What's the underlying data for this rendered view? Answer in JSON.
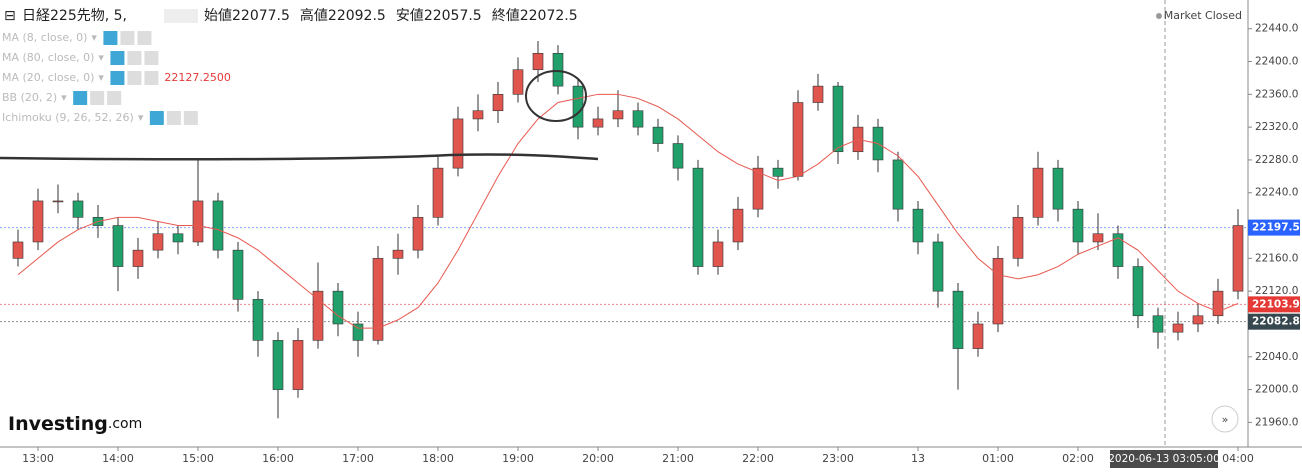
{
  "header": {
    "title": "日経225先物, 5,",
    "fields": [
      {
        "label": "始値",
        "value": "22077.5"
      },
      {
        "label": "高値",
        "value": "22092.5"
      },
      {
        "label": "安値",
        "value": "22057.5"
      },
      {
        "label": "終値",
        "value": "22072.5"
      }
    ]
  },
  "indicators": [
    {
      "label": "MA (8, close, 0)"
    },
    {
      "label": "MA (80, close, 0)"
    },
    {
      "label": "MA (20, close, 0)",
      "value": "22127.2500"
    },
    {
      "label": "BB (20, 2)"
    },
    {
      "label": "Ichimoku (9, 26, 52, 26)"
    }
  ],
  "status": "Market Closed",
  "logo": {
    "name": "Investing",
    "suffix": ".com"
  },
  "chart_data": {
    "type": "candlestick",
    "up_color": "#e0564f",
    "down_color": "#22a06b",
    "open": [
      22160,
      22180,
      22230,
      22230,
      22210,
      22200,
      22150,
      22170,
      22190,
      22180,
      22230,
      22170,
      22110,
      22060,
      22000,
      22060,
      22120,
      22080,
      22060,
      22160,
      22170,
      22210,
      22270,
      22330,
      22340,
      22360,
      22390,
      22410,
      22370,
      22320,
      22330,
      22340,
      22320,
      22300,
      22270,
      22150,
      22180,
      22220,
      22270,
      22260,
      22350,
      22370,
      22290,
      22320,
      22280,
      22220,
      22180,
      22120,
      22050,
      22080,
      22160,
      22210,
      22270,
      22220,
      22180,
      22190,
      22150,
      22090,
      22070,
      22080,
      22090,
      22120
    ],
    "high": [
      22195,
      22245,
      22250,
      22240,
      22225,
      22210,
      22185,
      22205,
      22200,
      22280,
      22240,
      22180,
      22120,
      22070,
      22075,
      22155,
      22130,
      22095,
      22175,
      22190,
      22225,
      22285,
      22345,
      22360,
      22375,
      22405,
      22425,
      22420,
      22380,
      22345,
      22365,
      22350,
      22330,
      22310,
      22280,
      22195,
      22235,
      22285,
      22280,
      22365,
      22385,
      22375,
      22335,
      22330,
      22290,
      22230,
      22190,
      22130,
      22095,
      22175,
      22225,
      22290,
      22280,
      22230,
      22215,
      22200,
      22160,
      22100,
      22095,
      22105,
      22135,
      22220
    ],
    "low": [
      22150,
      22170,
      22215,
      22195,
      22185,
      22120,
      22135,
      22160,
      22165,
      22175,
      22160,
      22095,
      22040,
      21965,
      21990,
      22050,
      22065,
      22040,
      22055,
      22140,
      22160,
      22200,
      22260,
      22315,
      22325,
      22350,
      22375,
      22360,
      22305,
      22310,
      22320,
      22310,
      22290,
      22255,
      22140,
      22140,
      22170,
      22210,
      22245,
      22255,
      22340,
      22275,
      22280,
      22265,
      22205,
      22165,
      22100,
      22000,
      22040,
      22070,
      22150,
      22200,
      22205,
      22165,
      22170,
      22135,
      22075,
      22050,
      22060,
      22070,
      22080,
      22110
    ],
    "close": [
      22180,
      22230,
      22230,
      22210,
      22200,
      22150,
      22170,
      22190,
      22180,
      22230,
      22170,
      22110,
      22060,
      22000,
      22060,
      22120,
      22080,
      22060,
      22160,
      22170,
      22210,
      22270,
      22330,
      22340,
      22360,
      22390,
      22410,
      22370,
      22320,
      22330,
      22340,
      22320,
      22300,
      22270,
      22150,
      22180,
      22220,
      22270,
      22260,
      22350,
      22370,
      22290,
      22320,
      22280,
      22220,
      22180,
      22120,
      22050,
      22080,
      22160,
      22210,
      22270,
      22220,
      22180,
      22190,
      22150,
      22090,
      22070,
      22080,
      22090,
      22120,
      22200
    ],
    "overlay": {
      "color": "#e8584f",
      "values": [
        22140,
        22160,
        22180,
        22195,
        22205,
        22210,
        22210,
        22205,
        22200,
        22200,
        22195,
        22185,
        22170,
        22150,
        22130,
        22110,
        22090,
        22075,
        22075,
        22085,
        22100,
        22130,
        22170,
        22215,
        22260,
        22300,
        22330,
        22350,
        22355,
        22360,
        22360,
        22355,
        22345,
        22330,
        22310,
        22290,
        22275,
        22265,
        22255,
        22260,
        22275,
        22295,
        22305,
        22300,
        22285,
        22260,
        22225,
        22190,
        22160,
        22140,
        22135,
        22140,
        22150,
        22165,
        22175,
        22185,
        22170,
        22145,
        22120,
        22105,
        22095,
        22105
      ]
    },
    "ylim": [
      21930,
      22475
    ],
    "yticks": [
      {
        "value": 21960,
        "label": "21960.0"
      },
      {
        "value": 22000,
        "label": "22000.0"
      },
      {
        "value": 22040,
        "label": "22040.0"
      },
      {
        "value": 22080,
        "label": "22080.0"
      },
      {
        "value": 22120,
        "label": "22120.0"
      },
      {
        "value": 22160,
        "label": "22160.0"
      },
      {
        "value": 22200,
        "label": "22200.0"
      },
      {
        "value": 22240,
        "label": "22240.0"
      },
      {
        "value": 22280,
        "label": "22280.0"
      },
      {
        "value": 22320,
        "label": "22320.0"
      },
      {
        "value": 22360,
        "label": "22360.0"
      },
      {
        "value": 22400,
        "label": "22400.0"
      },
      {
        "value": 22440,
        "label": "22440.0"
      }
    ],
    "xticks": [
      {
        "value": 1,
        "label": "13:00"
      },
      {
        "value": 5,
        "label": "14:00"
      },
      {
        "value": 9,
        "label": "15:00"
      },
      {
        "value": 13,
        "label": "16:00"
      },
      {
        "value": 17,
        "label": "17:00"
      },
      {
        "value": 21,
        "label": "18:00"
      },
      {
        "value": 25,
        "label": "19:00"
      },
      {
        "value": 29,
        "label": "20:00"
      },
      {
        "value": 33,
        "label": "21:00"
      },
      {
        "value": 37,
        "label": "22:00"
      },
      {
        "value": 41,
        "label": "23:00"
      },
      {
        "value": 45,
        "label": "13"
      },
      {
        "value": 49,
        "label": "01:00"
      },
      {
        "value": 53,
        "label": "02:00"
      },
      {
        "value": 61,
        "label": "04:00"
      }
    ],
    "price_labels": [
      {
        "value": 22197.5,
        "color": "#2962ff"
      },
      {
        "value": 22103.9,
        "color": "#e53935"
      },
      {
        "value": 22082.8,
        "color": "#37474f"
      }
    ],
    "cursor_label": "2020-06-13 03:05:00"
  }
}
